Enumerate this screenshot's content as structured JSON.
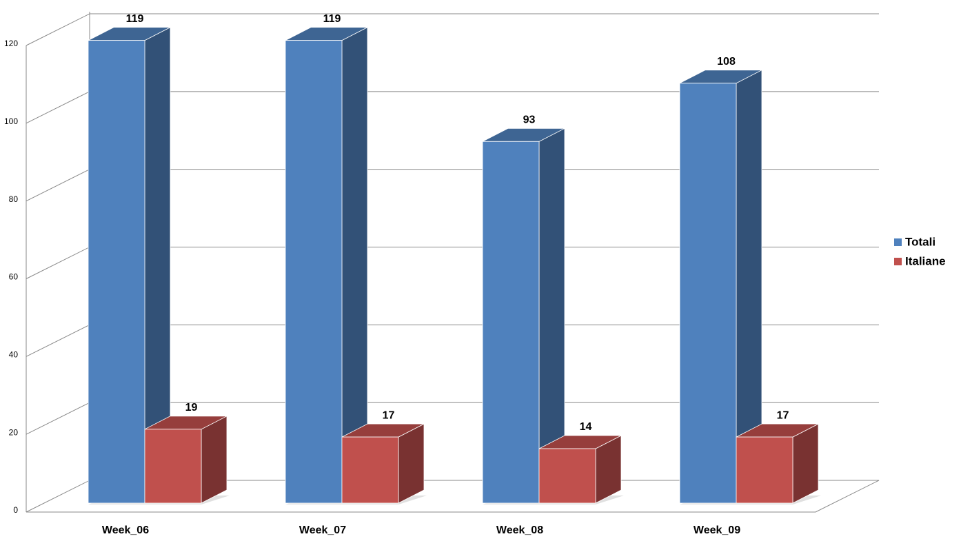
{
  "chart_data": {
    "type": "bar3d",
    "categories": [
      "Week_06",
      "Week_07",
      "Week_08",
      "Week_09"
    ],
    "series": [
      {
        "name": "Totali",
        "color": "#4f81bd",
        "values": [
          119,
          119,
          93,
          108
        ]
      },
      {
        "name": "Italiane",
        "color": "#c0504d",
        "values": [
          19,
          17,
          14,
          17
        ]
      }
    ],
    "ylim": [
      0,
      120
    ],
    "yticks": [
      0,
      20,
      40,
      60,
      80,
      100,
      120
    ],
    "grid": true,
    "legend": "right"
  }
}
